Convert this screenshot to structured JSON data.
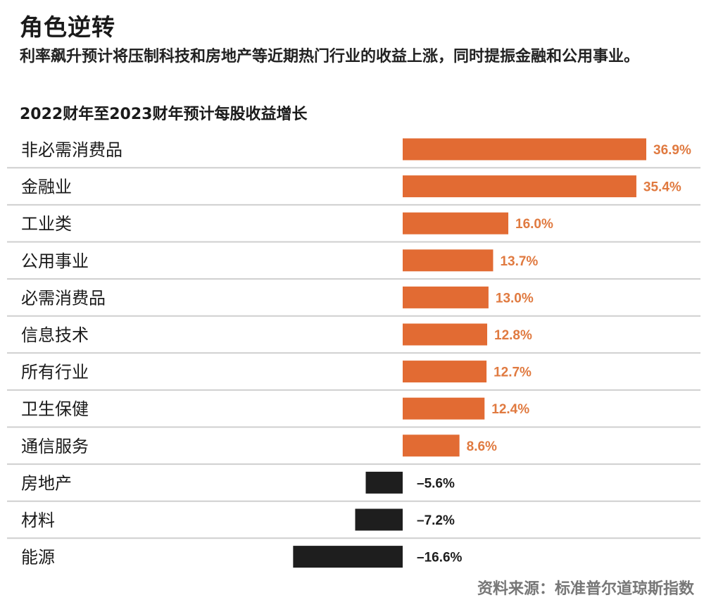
{
  "header": {
    "title": "角色逆转",
    "subtitle": "利率飙升预计将压制科技和房地产等近期热门行业的收益上涨，同时提振金融和公用事业。",
    "source": "资料来源：标准普尔道琼斯指数"
  },
  "colors": {
    "positive": "#e26b33",
    "negative": "#1e1e1e",
    "positive_label": "#e07a40",
    "divider": "#cfcfcf"
  },
  "chart_data": {
    "type": "bar",
    "orientation": "horizontal",
    "title": "2022财年至2023财年预计每股收益增长",
    "xlabel": "",
    "ylabel": "",
    "categories": [
      "非必需消费品",
      "金融业",
      "工业类",
      "公用事业",
      "必需消费品",
      "信息技术",
      "所有行业",
      "卫生保健",
      "通信服务",
      "房地产",
      "材料",
      "能源"
    ],
    "values": [
      36.9,
      35.4,
      16.0,
      13.7,
      13.0,
      12.8,
      12.7,
      12.4,
      8.6,
      -5.6,
      -7.2,
      -16.6
    ],
    "value_labels": [
      "36.9%",
      "35.4%",
      "16.0%",
      "13.7%",
      "13.0%",
      "12.8%",
      "12.7%",
      "12.4%",
      "8.6%",
      "–5.6%",
      "–7.2%",
      "–16.6%"
    ],
    "xlim": [
      -16.6,
      36.9
    ],
    "grid": false,
    "legend": "none"
  }
}
